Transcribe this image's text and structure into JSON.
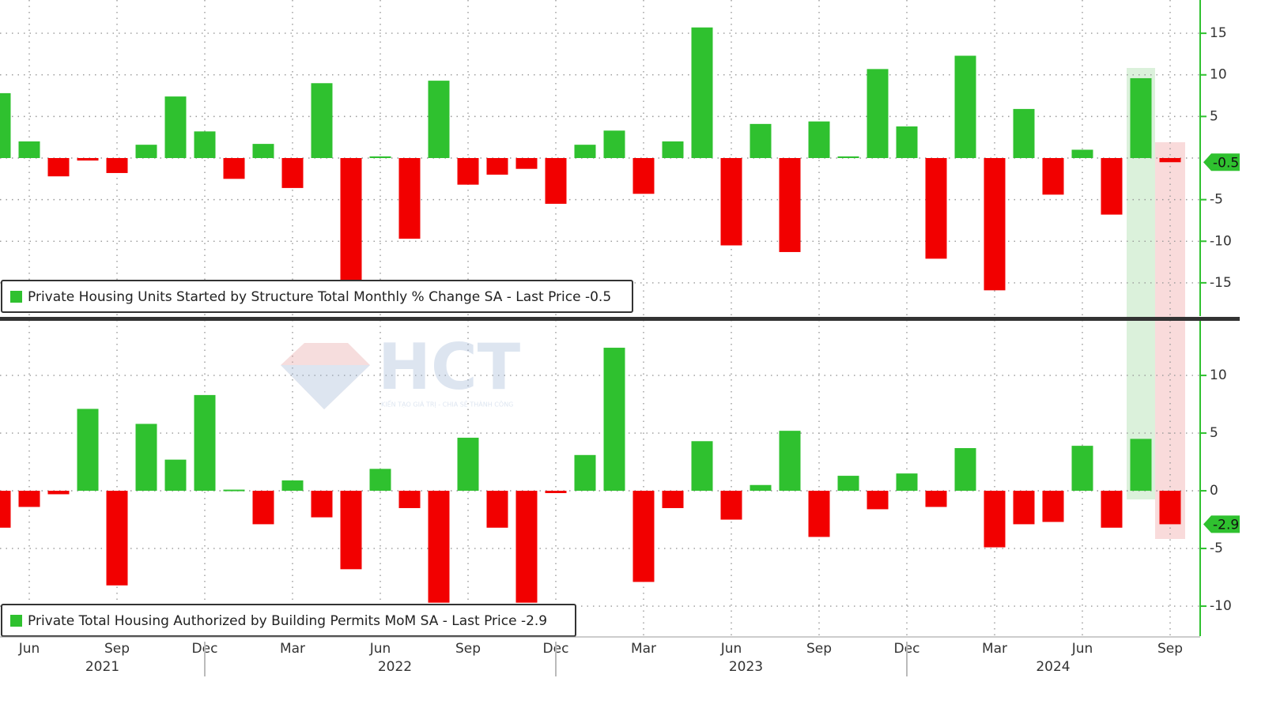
{
  "chart_data": [
    {
      "type": "bar",
      "x": [
        "2021-05",
        "2021-06",
        "2021-07",
        "2021-08",
        "2021-09",
        "2021-10",
        "2021-11",
        "2021-12",
        "2022-01",
        "2022-02",
        "2022-03",
        "2022-04",
        "2022-05",
        "2022-06",
        "2022-07",
        "2022-08",
        "2022-09",
        "2022-10",
        "2022-11",
        "2022-12",
        "2023-01",
        "2023-02",
        "2023-03",
        "2023-04",
        "2023-05",
        "2023-06",
        "2023-07",
        "2023-08",
        "2023-09",
        "2023-10",
        "2023-11",
        "2023-12",
        "2024-01",
        "2024-02",
        "2024-03",
        "2024-04",
        "2024-05",
        "2024-06",
        "2024-07",
        "2024-08",
        "2024-09"
      ],
      "series": [
        {
          "name": "Private Housing Units Started by Structure Total Monthly % Change SA - Last Price -0.5",
          "color": "#2fc12f",
          "negative_color": "#f20000",
          "values": [
            7.8,
            2.0,
            -2.2,
            -0.3,
            -1.8,
            1.6,
            7.4,
            3.2,
            -2.5,
            1.7,
            -3.6,
            9.0,
            -14.8,
            0.2,
            -9.7,
            9.3,
            -3.2,
            -2.0,
            -1.3,
            -5.5,
            1.6,
            3.3,
            -4.3,
            2.0,
            15.7,
            -10.5,
            4.1,
            -11.3,
            4.4,
            0.2,
            10.7,
            3.8,
            -12.1,
            12.3,
            -15.9,
            5.9,
            -4.4,
            1.0,
            -6.8,
            9.6,
            -0.5
          ]
        }
      ],
      "ylim": [
        -19,
        19
      ],
      "yticks": [
        15,
        10,
        5,
        -5,
        -10,
        -15
      ],
      "grid": true
    },
    {
      "type": "bar",
      "x": [
        "2021-05",
        "2021-06",
        "2021-07",
        "2021-08",
        "2021-09",
        "2021-10",
        "2021-11",
        "2021-12",
        "2022-01",
        "2022-02",
        "2022-03",
        "2022-04",
        "2022-05",
        "2022-06",
        "2022-07",
        "2022-08",
        "2022-09",
        "2022-10",
        "2022-11",
        "2022-12",
        "2023-01",
        "2023-02",
        "2023-03",
        "2023-04",
        "2023-05",
        "2023-06",
        "2023-07",
        "2023-08",
        "2023-09",
        "2023-10",
        "2023-11",
        "2023-12",
        "2024-01",
        "2024-02",
        "2024-03",
        "2024-04",
        "2024-05",
        "2024-06",
        "2024-07",
        "2024-08",
        "2024-09"
      ],
      "series": [
        {
          "name": "Private Total Housing Authorized by Building Permits MoM SA - Last Price -2.9",
          "color": "#2fc12f",
          "negative_color": "#f20000",
          "values": [
            -3.2,
            -1.4,
            -0.3,
            7.1,
            -8.2,
            5.8,
            2.7,
            8.3,
            0.1,
            -2.9,
            0.9,
            -2.3,
            -6.8,
            1.9,
            -1.5,
            -9.7,
            4.6,
            -3.2,
            -9.7,
            -0.2,
            3.1,
            12.4,
            -7.9,
            -1.5,
            4.3,
            -2.5,
            0.5,
            5.2,
            -4.0,
            1.3,
            -1.6,
            1.5,
            -1.4,
            3.7,
            -4.9,
            -2.9,
            -2.7,
            3.9,
            -3.2,
            4.5,
            -2.9
          ]
        }
      ],
      "ylim": [
        -12.6,
        14.8
      ],
      "yticks": [
        10,
        5,
        0,
        -5,
        -10
      ],
      "grid": true,
      "xticks": [
        {
          "value": "2021-06",
          "label": "Jun"
        },
        {
          "value": "2021-09",
          "label": "Sep"
        },
        {
          "value": "2021-12",
          "label": "Dec"
        },
        {
          "value": "2022-03",
          "label": "Mar"
        },
        {
          "value": "2022-06",
          "label": "Jun"
        },
        {
          "value": "2022-09",
          "label": "Sep"
        },
        {
          "value": "2022-12",
          "label": "Dec"
        },
        {
          "value": "2023-03",
          "label": "Mar"
        },
        {
          "value": "2023-06",
          "label": "Jun"
        },
        {
          "value": "2023-09",
          "label": "Sep"
        },
        {
          "value": "2023-12",
          "label": "Dec"
        },
        {
          "value": "2024-03",
          "label": "Mar"
        },
        {
          "value": "2024-06",
          "label": "Jun"
        },
        {
          "value": "2024-09",
          "label": "Sep"
        }
      ],
      "year_labels": [
        "2021",
        "2022",
        "2023",
        "2024"
      ]
    }
  ],
  "watermark": {
    "logo": "HCT",
    "tagline": "KIẾN TẠO GIÁ TRỊ - CHIA SẺ THÀNH CÔNG"
  }
}
